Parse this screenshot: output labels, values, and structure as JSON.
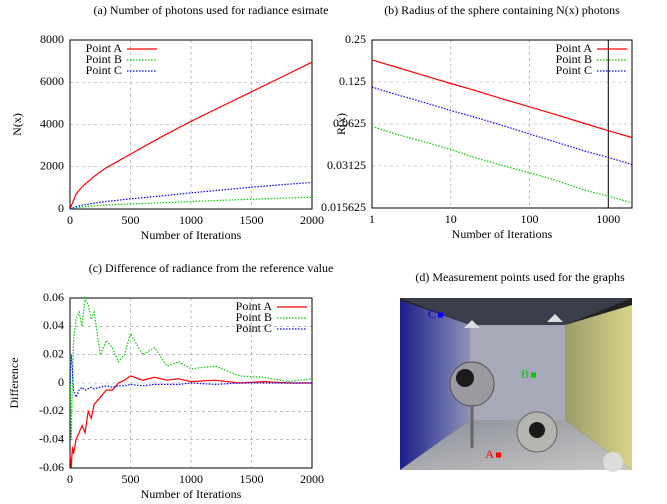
{
  "chart_data": [
    {
      "type": "line",
      "title": "(a) Number of photons used for radiance esimate",
      "xlabel": "Number of Iterations",
      "ylabel": "N(x)",
      "x": [
        0,
        50,
        100,
        200,
        300,
        500,
        750,
        1000,
        1250,
        1500,
        1750,
        2000
      ],
      "series": [
        {
          "name": "Point A",
          "color": "#ff0000",
          "style": "solid",
          "values": [
            0,
            700,
            1050,
            1550,
            1950,
            2600,
            3400,
            4150,
            4850,
            5550,
            6250,
            6950
          ]
        },
        {
          "name": "Point B",
          "color": "#00cc00",
          "style": "dotted",
          "values": [
            0,
            60,
            100,
            150,
            190,
            240,
            300,
            350,
            410,
            460,
            510,
            560
          ]
        },
        {
          "name": "Point C",
          "color": "#0000ff",
          "style": "dotted",
          "values": [
            0,
            110,
            180,
            280,
            360,
            480,
            620,
            760,
            900,
            1030,
            1150,
            1260
          ]
        }
      ],
      "xlim": [
        0,
        2000
      ],
      "xticks": [
        0,
        500,
        1000,
        1500,
        2000
      ],
      "ylim": [
        0,
        8000
      ],
      "yticks": [
        0,
        2000,
        4000,
        6000,
        8000
      ],
      "grid": true,
      "legend": "upper left"
    },
    {
      "type": "line",
      "title": "(b) Radius of the sphere containing N(x) photons",
      "xlabel": "Number of Iterations",
      "ylabel": "R(x)",
      "x": [
        1,
        2,
        5,
        10,
        20,
        50,
        100,
        200,
        500,
        1000,
        2000
      ],
      "series": [
        {
          "name": "Point A",
          "color": "#ff0000",
          "style": "solid",
          "values": [
            0.18,
            0.16,
            0.137,
            0.122,
            0.109,
            0.093,
            0.083,
            0.074,
            0.063,
            0.056,
            0.05
          ]
        },
        {
          "name": "Point B",
          "color": "#00cc00",
          "style": "dotted",
          "values": [
            0.06,
            0.053,
            0.046,
            0.041,
            0.036,
            0.031,
            0.028,
            0.025,
            0.021,
            0.019,
            0.017
          ]
        },
        {
          "name": "Point C",
          "color": "#0000ff",
          "style": "dotted",
          "values": [
            0.115,
            0.102,
            0.088,
            0.078,
            0.07,
            0.06,
            0.053,
            0.047,
            0.04,
            0.036,
            0.032
          ]
        }
      ],
      "xlim": [
        1,
        2000
      ],
      "xticks": [
        1,
        10,
        100,
        1000
      ],
      "xlog": true,
      "ylim": [
        0.015625,
        0.25
      ],
      "yticks": [
        0.015625,
        0.03125,
        0.0625,
        0.125,
        0.25
      ],
      "ylog": true,
      "vline": 1000,
      "grid": true,
      "legend": "upper right"
    },
    {
      "type": "line",
      "title": "(c) Difference of radiance from the reference value",
      "xlabel": "Number of Iterations",
      "ylabel": "Difference",
      "x": [
        0,
        10,
        20,
        30,
        50,
        75,
        100,
        125,
        150,
        175,
        200,
        250,
        300,
        350,
        400,
        450,
        500,
        600,
        700,
        800,
        900,
        1000,
        1200,
        1400,
        1600,
        1800,
        2000
      ],
      "series": [
        {
          "name": "Point A",
          "color": "#ff0000",
          "style": "solid",
          "values": [
            -0.05,
            -0.06,
            -0.045,
            -0.05,
            -0.04,
            -0.035,
            -0.03,
            -0.035,
            -0.02,
            -0.025,
            -0.015,
            -0.01,
            -0.005,
            -0.005,
            0,
            0.002,
            0.005,
            0.002,
            0.004,
            0.002,
            0.003,
            0.001,
            0.002,
            0,
            0.001,
            0,
            0
          ]
        },
        {
          "name": "Point B",
          "color": "#00cc00",
          "style": "dotted",
          "values": [
            0.02,
            -0.04,
            0,
            0.03,
            0.045,
            0.05,
            0.04,
            0.06,
            0.055,
            0.045,
            0.05,
            0.02,
            0.03,
            0.025,
            0.015,
            0.02,
            0.035,
            0.02,
            0.025,
            0.012,
            0.015,
            0.01,
            0.012,
            0.005,
            0.004,
            0.001,
            0.003
          ]
        },
        {
          "name": "Point C",
          "color": "#0000ff",
          "style": "dotted",
          "values": [
            0,
            0.02,
            0.01,
            -0.005,
            -0.01,
            -0.005,
            -0.003,
            -0.005,
            -0.004,
            -0.003,
            -0.004,
            -0.003,
            -0.002,
            -0.003,
            -0.002,
            -0.002,
            -0.001,
            -0.002,
            -0.001,
            -0.001,
            -0.001,
            0,
            -0.001,
            0,
            0,
            0,
            0
          ]
        }
      ],
      "xlim": [
        0,
        2000
      ],
      "xticks": [
        0,
        500,
        1000,
        1500,
        2000
      ],
      "ylim": [
        -0.06,
        0.06
      ],
      "yticks": [
        -0.06,
        -0.04,
        -0.02,
        0,
        0.02,
        0.04,
        0.06
      ],
      "grid": true,
      "legend": "upper right"
    }
  ],
  "image_panel": {
    "title": "(d) Measurement points used for the graphs",
    "points": [
      {
        "label": "A",
        "color": "#ff0000"
      },
      {
        "label": "B",
        "color": "#00cc00"
      },
      {
        "label": "C",
        "color": "#0000ff"
      }
    ]
  }
}
